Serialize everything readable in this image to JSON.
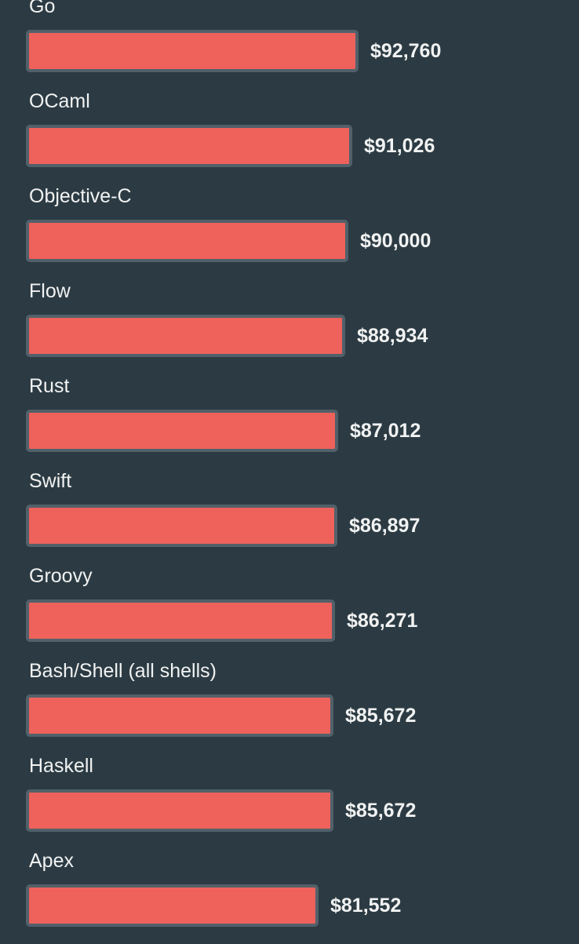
{
  "chart_data": {
    "type": "bar",
    "orientation": "horizontal",
    "categories": [
      "Go",
      "OCaml",
      "Objective-C",
      "Flow",
      "Rust",
      "Swift",
      "Groovy",
      "Bash/Shell (all shells)",
      "Haskell",
      "Apex"
    ],
    "values": [
      92760,
      91026,
      90000,
      88934,
      87012,
      86897,
      86271,
      85672,
      85672,
      81552
    ],
    "value_labels": [
      "$92,760",
      "$91,026",
      "$90,000",
      "$88,934",
      "$87,012",
      "$86,897",
      "$86,271",
      "$85,672",
      "$85,672",
      "$81,552"
    ],
    "title": "",
    "xlabel": "",
    "ylabel": "",
    "xlim": [
      0,
      92760
    ],
    "grid": false,
    "colors": {
      "background": "#2c3b43",
      "bar_fill": "#ee625b",
      "bar_border": "#52606a",
      "text": "#f1f2f2"
    }
  }
}
